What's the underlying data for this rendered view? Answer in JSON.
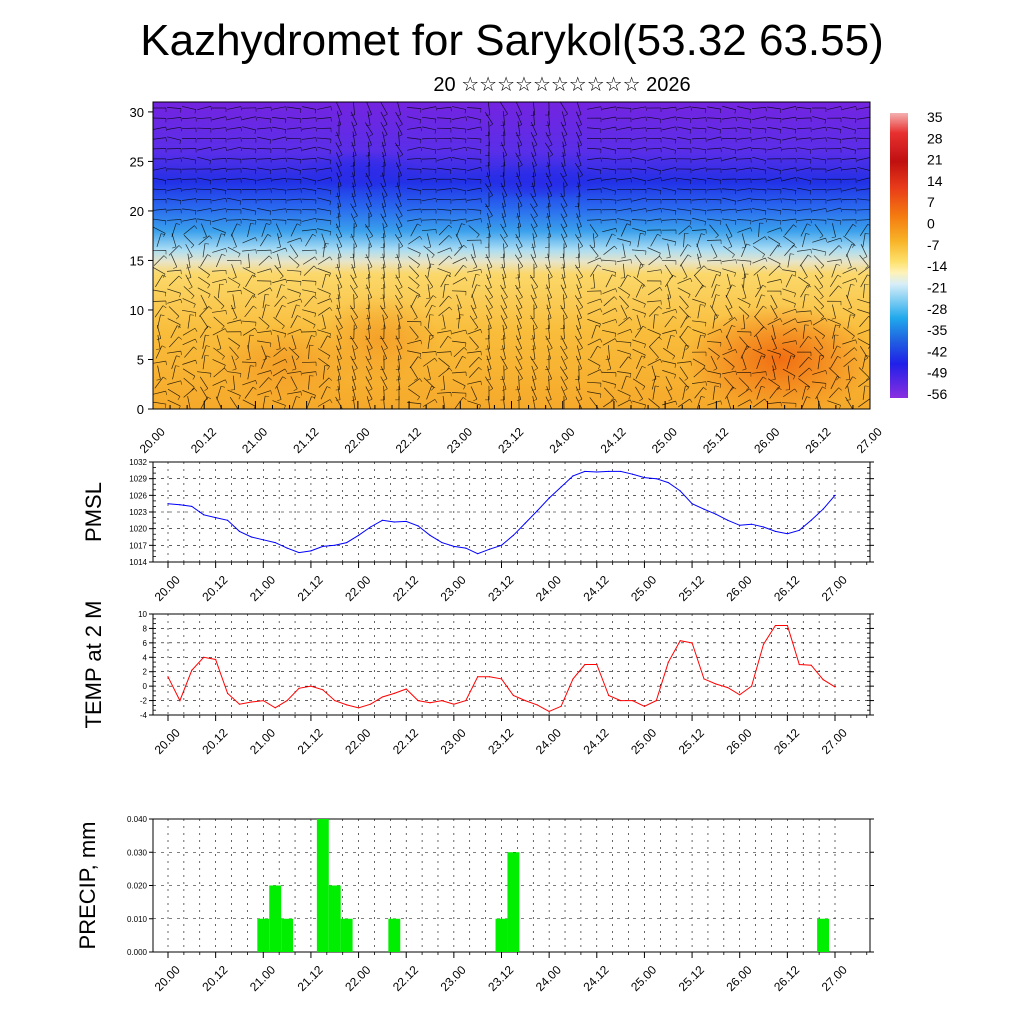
{
  "title": "Kazhydromet for Sarykol(53.32 63.55)",
  "subtitle": "20 ☆☆☆☆☆☆☆☆☆☆ 2026",
  "x_ticks": [
    "20.00",
    "20.12",
    "21.00",
    "21.12",
    "22.00",
    "22.12",
    "23.00",
    "23.12",
    "24.00",
    "24.12",
    "25.00",
    "25.12",
    "26.00",
    "26.12",
    "27.00"
  ],
  "chart_data": [
    {
      "type": "heatmap",
      "name": "temperature-cross-section",
      "title": "",
      "xlabel": "",
      "ylabel": "",
      "x_ticks": [
        "20.00",
        "20.12",
        "21.00",
        "21.12",
        "22.00",
        "22.12",
        "23.00",
        "23.12",
        "24.00",
        "24.12",
        "25.00",
        "25.12",
        "26.00",
        "26.12",
        "27.00"
      ],
      "y_ticks": [
        0,
        5,
        10,
        15,
        20,
        25,
        30
      ],
      "ylim": [
        0,
        31
      ],
      "colorbar_labels": [
        "35",
        "28",
        "21",
        "14",
        "7",
        "0",
        "-7",
        "-14",
        "-21",
        "-28",
        "-35",
        "-42",
        "-49",
        "-56"
      ],
      "colors": {
        "warm_high": "#f07010",
        "warm": "#f9b533",
        "warm_low": "#fde28e",
        "cold_high": "#9fd5f5",
        "cold": "#3a9ae8",
        "cold_low": "#2a30e6",
        "coldest": "#7424e0"
      },
      "notes": "Temperature field with wind barbs; warm (yellow-orange) below ~15, cold (blue-purple) above ~20"
    },
    {
      "type": "line",
      "name": "pmsl",
      "ylabel": "PMSL",
      "ylim": [
        1014,
        1032
      ],
      "y_ticks": [
        1014,
        1017,
        1020,
        1023,
        1026,
        1029,
        1032
      ],
      "color": "#0000ff",
      "x_hours": [
        0,
        3,
        6,
        9,
        12,
        15,
        18,
        21,
        24,
        27,
        30,
        33,
        36,
        39,
        42,
        45,
        48,
        51,
        54,
        57,
        60,
        63,
        66,
        69,
        72,
        75,
        78,
        81,
        84,
        87,
        90,
        93,
        96,
        99,
        102,
        105,
        108,
        111,
        114,
        117,
        120,
        123,
        126,
        129,
        132,
        135,
        138,
        141,
        144,
        147,
        150,
        153,
        156,
        159,
        162,
        165,
        168
      ],
      "values": [
        1024.5,
        1024.3,
        1024.0,
        1022.5,
        1022.0,
        1021.5,
        1019.5,
        1018.5,
        1018.0,
        1017.5,
        1016.5,
        1015.7,
        1016.0,
        1016.8,
        1017.0,
        1017.5,
        1018.8,
        1020.3,
        1021.5,
        1021.2,
        1021.3,
        1020.5,
        1018.8,
        1017.5,
        1016.8,
        1016.5,
        1015.5,
        1016.3,
        1017.0,
        1018.8,
        1021.0,
        1023.2,
        1025.5,
        1027.5,
        1029.5,
        1030.3,
        1030.2,
        1030.3,
        1030.3,
        1029.8,
        1029.2,
        1029.0,
        1028.3,
        1026.8,
        1024.5,
        1023.5,
        1022.6,
        1021.5,
        1020.6,
        1020.8,
        1020.3,
        1019.5,
        1019.1,
        1019.7,
        1021.5,
        1023.5,
        1026.0
      ]
    },
    {
      "type": "line",
      "name": "temp-2m",
      "ylabel": "TEMP at 2 M",
      "ylim": [
        -4,
        10
      ],
      "y_ticks": [
        -4,
        -2,
        0,
        2,
        4,
        6,
        8,
        10
      ],
      "color": "#ff0000",
      "x_hours": [
        0,
        3,
        6,
        9,
        12,
        15,
        18,
        21,
        24,
        27,
        30,
        33,
        36,
        39,
        42,
        45,
        48,
        51,
        54,
        57,
        60,
        63,
        66,
        69,
        72,
        75,
        78,
        81,
        84,
        87,
        90,
        93,
        96,
        99,
        102,
        105,
        108,
        111,
        114,
        117,
        120,
        123,
        126,
        129,
        132,
        135,
        138,
        141,
        144,
        147,
        150,
        153,
        156,
        159,
        162,
        165,
        168
      ],
      "values": [
        1.3,
        -2.0,
        2.2,
        4.0,
        3.7,
        -1.0,
        -2.5,
        -2.2,
        -2.0,
        -3.0,
        -2.0,
        -0.3,
        0.0,
        -0.5,
        -2.0,
        -2.6,
        -3.0,
        -2.5,
        -1.5,
        -1.0,
        -0.4,
        -2.0,
        -2.3,
        -2.0,
        -2.5,
        -2.0,
        1.3,
        1.3,
        1.0,
        -1.3,
        -2.0,
        -2.6,
        -3.5,
        -2.8,
        1.0,
        3.0,
        3.0,
        -1.3,
        -2.0,
        -2.0,
        -2.8,
        -2.0,
        3.3,
        6.3,
        6.0,
        1.0,
        0.3,
        -0.2,
        -1.2,
        0.0,
        5.8,
        8.4,
        8.4,
        3.0,
        2.9,
        0.9,
        -0.1
      ]
    },
    {
      "type": "bar",
      "name": "precip",
      "ylabel": "PRECIP, mm",
      "ylim": [
        0,
        0.04
      ],
      "y_ticks": [
        "0.000",
        "0.010",
        "0.020",
        "0.030",
        "0.040"
      ],
      "color": "#00ee00",
      "bar_hours": [
        24,
        27,
        30,
        39,
        42,
        45,
        57,
        84,
        87,
        165
      ],
      "values": [
        0.01,
        0.02,
        0.01,
        0.04,
        0.02,
        0.01,
        0.01,
        0.01,
        0.03,
        0.01
      ]
    }
  ]
}
